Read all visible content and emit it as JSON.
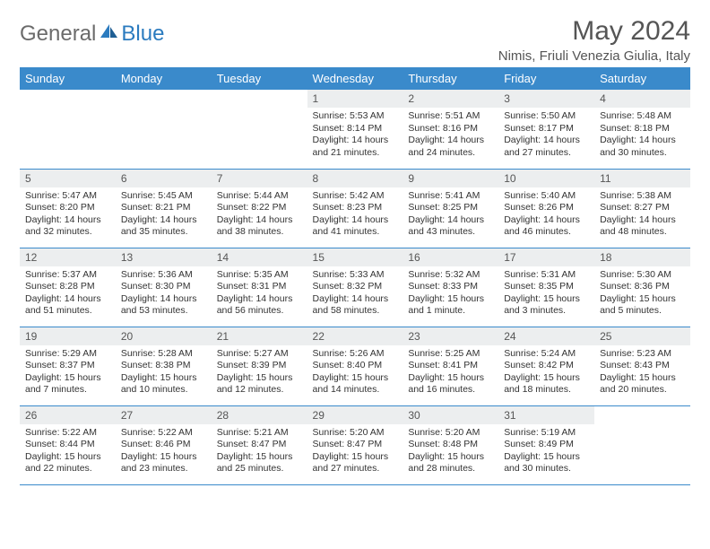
{
  "logo": {
    "part1": "General",
    "part2": "Blue"
  },
  "title": "May 2024",
  "location": "Nimis, Friuli Venezia Giulia, Italy",
  "colors": {
    "header_bg": "#3a8acb",
    "header_text": "#ffffff",
    "daynum_bg": "#eceeef",
    "border": "#3a8acb",
    "logo_gray": "#6b6b6b",
    "logo_blue": "#2b7bbf"
  },
  "day_headers": [
    "Sunday",
    "Monday",
    "Tuesday",
    "Wednesday",
    "Thursday",
    "Friday",
    "Saturday"
  ],
  "weeks": [
    [
      {
        "n": "",
        "sr": "",
        "ss": "",
        "dl": ""
      },
      {
        "n": "",
        "sr": "",
        "ss": "",
        "dl": ""
      },
      {
        "n": "",
        "sr": "",
        "ss": "",
        "dl": ""
      },
      {
        "n": "1",
        "sr": "Sunrise: 5:53 AM",
        "ss": "Sunset: 8:14 PM",
        "dl": "Daylight: 14 hours and 21 minutes."
      },
      {
        "n": "2",
        "sr": "Sunrise: 5:51 AM",
        "ss": "Sunset: 8:16 PM",
        "dl": "Daylight: 14 hours and 24 minutes."
      },
      {
        "n": "3",
        "sr": "Sunrise: 5:50 AM",
        "ss": "Sunset: 8:17 PM",
        "dl": "Daylight: 14 hours and 27 minutes."
      },
      {
        "n": "4",
        "sr": "Sunrise: 5:48 AM",
        "ss": "Sunset: 8:18 PM",
        "dl": "Daylight: 14 hours and 30 minutes."
      }
    ],
    [
      {
        "n": "5",
        "sr": "Sunrise: 5:47 AM",
        "ss": "Sunset: 8:20 PM",
        "dl": "Daylight: 14 hours and 32 minutes."
      },
      {
        "n": "6",
        "sr": "Sunrise: 5:45 AM",
        "ss": "Sunset: 8:21 PM",
        "dl": "Daylight: 14 hours and 35 minutes."
      },
      {
        "n": "7",
        "sr": "Sunrise: 5:44 AM",
        "ss": "Sunset: 8:22 PM",
        "dl": "Daylight: 14 hours and 38 minutes."
      },
      {
        "n": "8",
        "sr": "Sunrise: 5:42 AM",
        "ss": "Sunset: 8:23 PM",
        "dl": "Daylight: 14 hours and 41 minutes."
      },
      {
        "n": "9",
        "sr": "Sunrise: 5:41 AM",
        "ss": "Sunset: 8:25 PM",
        "dl": "Daylight: 14 hours and 43 minutes."
      },
      {
        "n": "10",
        "sr": "Sunrise: 5:40 AM",
        "ss": "Sunset: 8:26 PM",
        "dl": "Daylight: 14 hours and 46 minutes."
      },
      {
        "n": "11",
        "sr": "Sunrise: 5:38 AM",
        "ss": "Sunset: 8:27 PM",
        "dl": "Daylight: 14 hours and 48 minutes."
      }
    ],
    [
      {
        "n": "12",
        "sr": "Sunrise: 5:37 AM",
        "ss": "Sunset: 8:28 PM",
        "dl": "Daylight: 14 hours and 51 minutes."
      },
      {
        "n": "13",
        "sr": "Sunrise: 5:36 AM",
        "ss": "Sunset: 8:30 PM",
        "dl": "Daylight: 14 hours and 53 minutes."
      },
      {
        "n": "14",
        "sr": "Sunrise: 5:35 AM",
        "ss": "Sunset: 8:31 PM",
        "dl": "Daylight: 14 hours and 56 minutes."
      },
      {
        "n": "15",
        "sr": "Sunrise: 5:33 AM",
        "ss": "Sunset: 8:32 PM",
        "dl": "Daylight: 14 hours and 58 minutes."
      },
      {
        "n": "16",
        "sr": "Sunrise: 5:32 AM",
        "ss": "Sunset: 8:33 PM",
        "dl": "Daylight: 15 hours and 1 minute."
      },
      {
        "n": "17",
        "sr": "Sunrise: 5:31 AM",
        "ss": "Sunset: 8:35 PM",
        "dl": "Daylight: 15 hours and 3 minutes."
      },
      {
        "n": "18",
        "sr": "Sunrise: 5:30 AM",
        "ss": "Sunset: 8:36 PM",
        "dl": "Daylight: 15 hours and 5 minutes."
      }
    ],
    [
      {
        "n": "19",
        "sr": "Sunrise: 5:29 AM",
        "ss": "Sunset: 8:37 PM",
        "dl": "Daylight: 15 hours and 7 minutes."
      },
      {
        "n": "20",
        "sr": "Sunrise: 5:28 AM",
        "ss": "Sunset: 8:38 PM",
        "dl": "Daylight: 15 hours and 10 minutes."
      },
      {
        "n": "21",
        "sr": "Sunrise: 5:27 AM",
        "ss": "Sunset: 8:39 PM",
        "dl": "Daylight: 15 hours and 12 minutes."
      },
      {
        "n": "22",
        "sr": "Sunrise: 5:26 AM",
        "ss": "Sunset: 8:40 PM",
        "dl": "Daylight: 15 hours and 14 minutes."
      },
      {
        "n": "23",
        "sr": "Sunrise: 5:25 AM",
        "ss": "Sunset: 8:41 PM",
        "dl": "Daylight: 15 hours and 16 minutes."
      },
      {
        "n": "24",
        "sr": "Sunrise: 5:24 AM",
        "ss": "Sunset: 8:42 PM",
        "dl": "Daylight: 15 hours and 18 minutes."
      },
      {
        "n": "25",
        "sr": "Sunrise: 5:23 AM",
        "ss": "Sunset: 8:43 PM",
        "dl": "Daylight: 15 hours and 20 minutes."
      }
    ],
    [
      {
        "n": "26",
        "sr": "Sunrise: 5:22 AM",
        "ss": "Sunset: 8:44 PM",
        "dl": "Daylight: 15 hours and 22 minutes."
      },
      {
        "n": "27",
        "sr": "Sunrise: 5:22 AM",
        "ss": "Sunset: 8:46 PM",
        "dl": "Daylight: 15 hours and 23 minutes."
      },
      {
        "n": "28",
        "sr": "Sunrise: 5:21 AM",
        "ss": "Sunset: 8:47 PM",
        "dl": "Daylight: 15 hours and 25 minutes."
      },
      {
        "n": "29",
        "sr": "Sunrise: 5:20 AM",
        "ss": "Sunset: 8:47 PM",
        "dl": "Daylight: 15 hours and 27 minutes."
      },
      {
        "n": "30",
        "sr": "Sunrise: 5:20 AM",
        "ss": "Sunset: 8:48 PM",
        "dl": "Daylight: 15 hours and 28 minutes."
      },
      {
        "n": "31",
        "sr": "Sunrise: 5:19 AM",
        "ss": "Sunset: 8:49 PM",
        "dl": "Daylight: 15 hours and 30 minutes."
      },
      {
        "n": "",
        "sr": "",
        "ss": "",
        "dl": ""
      }
    ]
  ]
}
